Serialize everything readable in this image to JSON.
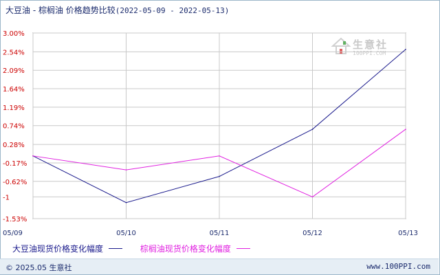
{
  "header": {
    "title": "大豆油 - 棕榈油 价格趋势比较",
    "date_range": "(2022-05-09 - 2022-05-13)"
  },
  "watermark": {
    "text": "生意社",
    "url": "100PPI.COM"
  },
  "footer": {
    "copyright": "© 2025.05 生意社",
    "site": "www.100PPI.com"
  },
  "colors": {
    "series1": "#1a1a8c",
    "series2": "#e020e0",
    "tick_red": "#cc0000",
    "grid": "#c8c8c8",
    "axis": "#555555"
  },
  "chart_data": {
    "type": "line",
    "title": "大豆油 - 棕榈油 价格趋势比较",
    "x": [
      "05/09",
      "05/10",
      "05/11",
      "05/12",
      "05/13"
    ],
    "y_ticks": [
      "3.00%",
      "2.54%",
      "2.09%",
      "1.64%",
      "1.19%",
      "0.74%",
      "0.28%",
      "-0.17%",
      "-0.62%",
      "-1",
      "-1.53%"
    ],
    "y_tick_values": [
      3.0,
      2.54,
      2.09,
      1.64,
      1.19,
      0.74,
      0.28,
      -0.17,
      -0.62,
      -1.0,
      -1.53
    ],
    "ylim": [
      -1.53,
      3.0
    ],
    "series": [
      {
        "name": "大豆油现货价格变化幅度",
        "color": "#1a1a8c",
        "values": [
          0.0,
          -1.14,
          -0.5,
          0.65,
          2.6
        ]
      },
      {
        "name": "棕榈油现货价格变化幅度",
        "color": "#e020e0",
        "values": [
          0.0,
          -0.34,
          0.0,
          -1.0,
          0.65
        ]
      }
    ],
    "grid": true,
    "legend": "bottom-left"
  }
}
